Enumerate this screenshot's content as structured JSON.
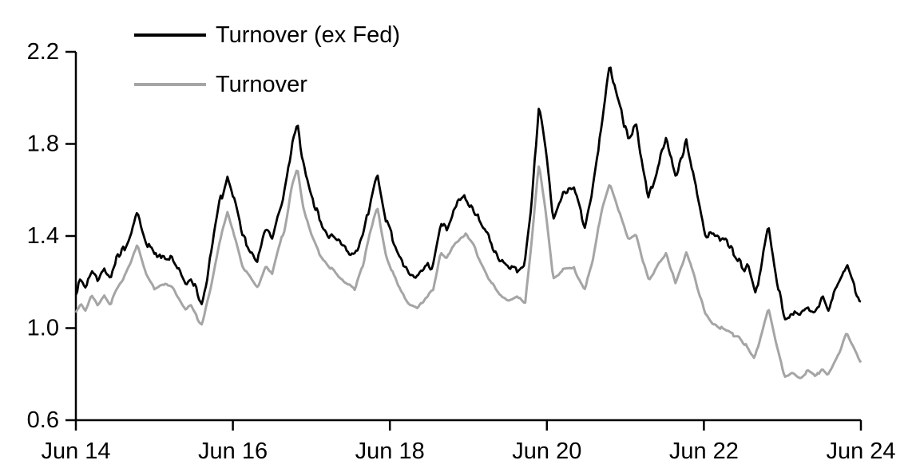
{
  "chart_data": {
    "type": "line",
    "title": "",
    "xlabel": "",
    "ylabel": "",
    "grid": false,
    "legend_position": "top-left-inside",
    "background_color": "#ffffff",
    "axis_color": "#000000",
    "text_color": "#000000",
    "x_axis": {
      "tick_labels": [
        "Jun 14",
        "Jun 16",
        "Jun 18",
        "Jun 20",
        "Jun 22",
        "Jun 24"
      ],
      "range_years": [
        0,
        10
      ]
    },
    "y_axis": {
      "tick_labels": [
        "0.6",
        "1.0",
        "1.4",
        "1.8",
        "2.2"
      ],
      "tick_values": [
        0.6,
        1.0,
        1.4,
        1.8,
        2.2
      ],
      "range": [
        0.6,
        2.2
      ]
    },
    "noise_seed": 7,
    "samples": 580,
    "series": [
      {
        "name": "Turnover (ex Fed)",
        "color": "#000000",
        "stroke_width": 2.8,
        "noise_fast": 0.013,
        "noise_slow": 0.015,
        "keypoints": [
          [
            0.0,
            1.17
          ],
          [
            0.06,
            1.22
          ],
          [
            0.12,
            1.19
          ],
          [
            0.2,
            1.25
          ],
          [
            0.28,
            1.21
          ],
          [
            0.36,
            1.27
          ],
          [
            0.44,
            1.23
          ],
          [
            0.52,
            1.3
          ],
          [
            0.6,
            1.34
          ],
          [
            0.7,
            1.42
          ],
          [
            0.78,
            1.51
          ],
          [
            0.84,
            1.44
          ],
          [
            0.9,
            1.37
          ],
          [
            1.0,
            1.3
          ],
          [
            1.1,
            1.32
          ],
          [
            1.22,
            1.31
          ],
          [
            1.3,
            1.26
          ],
          [
            1.4,
            1.19
          ],
          [
            1.46,
            1.23
          ],
          [
            1.55,
            1.16
          ],
          [
            1.6,
            1.1
          ],
          [
            1.72,
            1.31
          ],
          [
            1.82,
            1.52
          ],
          [
            1.93,
            1.66
          ],
          [
            2.02,
            1.55
          ],
          [
            2.12,
            1.4
          ],
          [
            2.22,
            1.35
          ],
          [
            2.32,
            1.29
          ],
          [
            2.42,
            1.42
          ],
          [
            2.5,
            1.38
          ],
          [
            2.58,
            1.5
          ],
          [
            2.66,
            1.58
          ],
          [
            2.75,
            1.78
          ],
          [
            2.82,
            1.88
          ],
          [
            2.9,
            1.7
          ],
          [
            3.0,
            1.56
          ],
          [
            3.1,
            1.47
          ],
          [
            3.22,
            1.4
          ],
          [
            3.35,
            1.36
          ],
          [
            3.48,
            1.32
          ],
          [
            3.56,
            1.31
          ],
          [
            3.66,
            1.4
          ],
          [
            3.76,
            1.57
          ],
          [
            3.84,
            1.69
          ],
          [
            3.95,
            1.48
          ],
          [
            4.1,
            1.34
          ],
          [
            4.25,
            1.23
          ],
          [
            4.35,
            1.22
          ],
          [
            4.45,
            1.26
          ],
          [
            4.55,
            1.28
          ],
          [
            4.65,
            1.46
          ],
          [
            4.72,
            1.43
          ],
          [
            4.82,
            1.51
          ],
          [
            4.95,
            1.57
          ],
          [
            5.05,
            1.52
          ],
          [
            5.15,
            1.45
          ],
          [
            5.28,
            1.37
          ],
          [
            5.4,
            1.29
          ],
          [
            5.52,
            1.26
          ],
          [
            5.62,
            1.24
          ],
          [
            5.72,
            1.28
          ],
          [
            5.8,
            1.5
          ],
          [
            5.9,
            1.96
          ],
          [
            5.98,
            1.78
          ],
          [
            6.08,
            1.46
          ],
          [
            6.2,
            1.58
          ],
          [
            6.35,
            1.6
          ],
          [
            6.48,
            1.44
          ],
          [
            6.58,
            1.6
          ],
          [
            6.7,
            1.88
          ],
          [
            6.8,
            2.13
          ],
          [
            6.9,
            1.98
          ],
          [
            7.04,
            1.84
          ],
          [
            7.14,
            1.89
          ],
          [
            7.22,
            1.7
          ],
          [
            7.3,
            1.57
          ],
          [
            7.42,
            1.71
          ],
          [
            7.52,
            1.82
          ],
          [
            7.64,
            1.66
          ],
          [
            7.78,
            1.81
          ],
          [
            7.9,
            1.6
          ],
          [
            8.02,
            1.41
          ],
          [
            8.15,
            1.42
          ],
          [
            8.28,
            1.38
          ],
          [
            8.45,
            1.3
          ],
          [
            8.58,
            1.24
          ],
          [
            8.66,
            1.13
          ],
          [
            8.74,
            1.31
          ],
          [
            8.82,
            1.45
          ],
          [
            8.92,
            1.24
          ],
          [
            9.03,
            1.05
          ],
          [
            9.12,
            1.06
          ],
          [
            9.22,
            1.04
          ],
          [
            9.32,
            1.08
          ],
          [
            9.42,
            1.06
          ],
          [
            9.51,
            1.15
          ],
          [
            9.58,
            1.08
          ],
          [
            9.7,
            1.18
          ],
          [
            9.82,
            1.27
          ],
          [
            9.9,
            1.19
          ],
          [
            10.0,
            1.1
          ]
        ]
      },
      {
        "name": "Turnover",
        "color": "#a5a5a5",
        "stroke_width": 3,
        "noise_fast": 0.004,
        "noise_slow": 0.008,
        "keypoints": [
          [
            0.0,
            1.07
          ],
          [
            0.06,
            1.11
          ],
          [
            0.12,
            1.08
          ],
          [
            0.2,
            1.15
          ],
          [
            0.28,
            1.1
          ],
          [
            0.36,
            1.15
          ],
          [
            0.44,
            1.11
          ],
          [
            0.52,
            1.17
          ],
          [
            0.6,
            1.21
          ],
          [
            0.7,
            1.28
          ],
          [
            0.78,
            1.36
          ],
          [
            0.84,
            1.29
          ],
          [
            0.9,
            1.23
          ],
          [
            1.0,
            1.17
          ],
          [
            1.1,
            1.19
          ],
          [
            1.22,
            1.18
          ],
          [
            1.3,
            1.13
          ],
          [
            1.4,
            1.07
          ],
          [
            1.46,
            1.1
          ],
          [
            1.55,
            1.04
          ],
          [
            1.6,
            1.01
          ],
          [
            1.72,
            1.18
          ],
          [
            1.82,
            1.36
          ],
          [
            1.93,
            1.5
          ],
          [
            2.02,
            1.4
          ],
          [
            2.12,
            1.27
          ],
          [
            2.22,
            1.22
          ],
          [
            2.32,
            1.17
          ],
          [
            2.42,
            1.27
          ],
          [
            2.5,
            1.23
          ],
          [
            2.58,
            1.34
          ],
          [
            2.66,
            1.43
          ],
          [
            2.75,
            1.62
          ],
          [
            2.82,
            1.7
          ],
          [
            2.9,
            1.52
          ],
          [
            3.0,
            1.41
          ],
          [
            3.1,
            1.33
          ],
          [
            3.22,
            1.27
          ],
          [
            3.35,
            1.22
          ],
          [
            3.48,
            1.19
          ],
          [
            3.56,
            1.17
          ],
          [
            3.66,
            1.27
          ],
          [
            3.76,
            1.43
          ],
          [
            3.84,
            1.52
          ],
          [
            3.95,
            1.32
          ],
          [
            4.1,
            1.18
          ],
          [
            4.25,
            1.1
          ],
          [
            4.35,
            1.09
          ],
          [
            4.45,
            1.13
          ],
          [
            4.55,
            1.16
          ],
          [
            4.65,
            1.33
          ],
          [
            4.72,
            1.3
          ],
          [
            4.82,
            1.37
          ],
          [
            4.95,
            1.41
          ],
          [
            5.05,
            1.37
          ],
          [
            5.15,
            1.29
          ],
          [
            5.28,
            1.2
          ],
          [
            5.4,
            1.14
          ],
          [
            5.52,
            1.12
          ],
          [
            5.62,
            1.14
          ],
          [
            5.72,
            1.1
          ],
          [
            5.8,
            1.35
          ],
          [
            5.9,
            1.72
          ],
          [
            5.98,
            1.52
          ],
          [
            6.08,
            1.22
          ],
          [
            6.2,
            1.25
          ],
          [
            6.35,
            1.26
          ],
          [
            6.48,
            1.17
          ],
          [
            6.58,
            1.28
          ],
          [
            6.7,
            1.52
          ],
          [
            6.8,
            1.63
          ],
          [
            6.9,
            1.53
          ],
          [
            7.04,
            1.38
          ],
          [
            7.14,
            1.41
          ],
          [
            7.22,
            1.3
          ],
          [
            7.3,
            1.21
          ],
          [
            7.42,
            1.28
          ],
          [
            7.52,
            1.33
          ],
          [
            7.64,
            1.19
          ],
          [
            7.78,
            1.33
          ],
          [
            7.9,
            1.2
          ],
          [
            8.02,
            1.07
          ],
          [
            8.1,
            1.03
          ],
          [
            8.22,
            1.0
          ],
          [
            8.35,
            0.97
          ],
          [
            8.45,
            0.97
          ],
          [
            8.55,
            0.91
          ],
          [
            8.64,
            0.86
          ],
          [
            8.74,
            0.98
          ],
          [
            8.82,
            1.09
          ],
          [
            8.92,
            0.93
          ],
          [
            9.03,
            0.79
          ],
          [
            9.12,
            0.81
          ],
          [
            9.22,
            0.78
          ],
          [
            9.32,
            0.81
          ],
          [
            9.42,
            0.79
          ],
          [
            9.51,
            0.83
          ],
          [
            9.58,
            0.8
          ],
          [
            9.7,
            0.88
          ],
          [
            9.82,
            0.98
          ],
          [
            9.9,
            0.92
          ],
          [
            10.0,
            0.85
          ]
        ]
      }
    ]
  }
}
